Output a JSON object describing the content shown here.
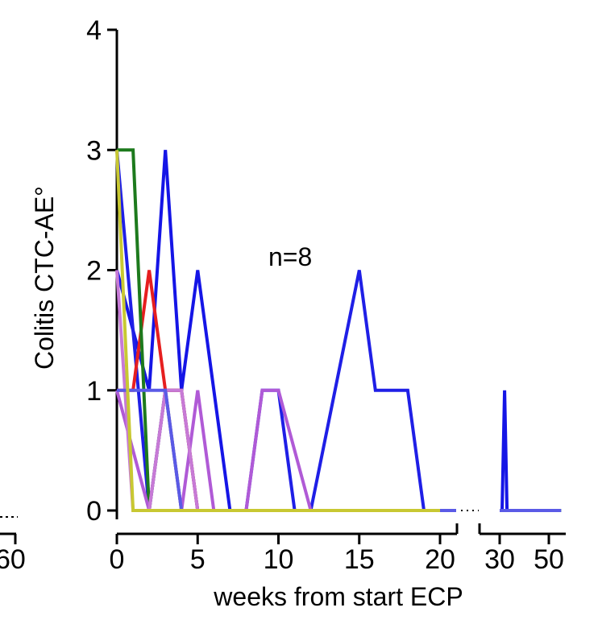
{
  "chart_data": {
    "type": "line",
    "annotation": "n=8",
    "ylabel": "Colitis CTC-AE°",
    "xlabel": "weeks from start ECP",
    "ylim": [
      0,
      4
    ],
    "y_ticks": [
      "0",
      "1",
      "2",
      "3",
      "4"
    ],
    "x_segments": [
      {
        "range": [
          0,
          21
        ],
        "ticks": [
          "0",
          "5",
          "10",
          "15",
          "20"
        ]
      },
      {
        "range": [
          30,
          55
        ],
        "ticks": [
          "30",
          "50"
        ]
      }
    ],
    "neighbor_fragment": {
      "tick_label": "60"
    },
    "series": [
      {
        "color": "#1515e6",
        "points": [
          [
            0,
            2
          ],
          [
            2,
            1
          ],
          [
            3,
            3
          ],
          [
            4,
            1
          ],
          [
            5,
            2
          ],
          [
            7,
            0
          ],
          [
            8,
            0
          ],
          [
            21,
            0
          ],
          [
            30,
            0
          ],
          [
            31,
            0
          ],
          [
            32,
            1
          ],
          [
            33,
            0
          ],
          [
            50,
            0
          ]
        ]
      },
      {
        "color": "#1f1fe6",
        "points": [
          [
            0,
            3
          ],
          [
            2,
            0
          ],
          [
            3,
            1
          ],
          [
            4,
            1
          ],
          [
            5,
            0
          ],
          [
            8,
            0
          ],
          [
            9,
            1
          ],
          [
            10,
            1
          ],
          [
            11,
            0
          ],
          [
            12,
            0
          ],
          [
            15,
            2
          ],
          [
            16,
            1
          ],
          [
            18,
            1
          ],
          [
            19,
            0
          ],
          [
            21,
            0
          ]
        ]
      },
      {
        "color": "#e61f1f",
        "points": [
          [
            0,
            1
          ],
          [
            1,
            1
          ],
          [
            2,
            2
          ],
          [
            3,
            1
          ],
          [
            4,
            1
          ],
          [
            5,
            0
          ],
          [
            20,
            0
          ]
        ]
      },
      {
        "color": "#1d7a1d",
        "points": [
          [
            0,
            3
          ],
          [
            1,
            3
          ],
          [
            2,
            0
          ],
          [
            3,
            1
          ],
          [
            4,
            0
          ],
          [
            21,
            0
          ],
          [
            30,
            0
          ],
          [
            55,
            0
          ]
        ]
      },
      {
        "color": "#b05ad6",
        "points": [
          [
            0,
            1
          ],
          [
            2,
            0
          ],
          [
            3,
            1
          ],
          [
            4,
            0
          ],
          [
            5,
            1
          ],
          [
            6,
            0
          ],
          [
            8,
            0
          ],
          [
            9,
            1
          ],
          [
            10,
            1
          ],
          [
            12,
            0
          ],
          [
            20,
            0
          ]
        ]
      },
      {
        "color": "#c77ad6",
        "points": [
          [
            0,
            2
          ],
          [
            1,
            0
          ],
          [
            2,
            0
          ],
          [
            3,
            1
          ],
          [
            4,
            1
          ],
          [
            5,
            0
          ],
          [
            20,
            0
          ]
        ]
      },
      {
        "color": "#5a5ae6",
        "points": [
          [
            0,
            1
          ],
          [
            3,
            1
          ],
          [
            4,
            0
          ],
          [
            21,
            0
          ],
          [
            30,
            0
          ],
          [
            55,
            0
          ]
        ]
      },
      {
        "color": "#c8c832",
        "points": [
          [
            0,
            3
          ],
          [
            1,
            0
          ],
          [
            20,
            0
          ]
        ]
      }
    ]
  }
}
